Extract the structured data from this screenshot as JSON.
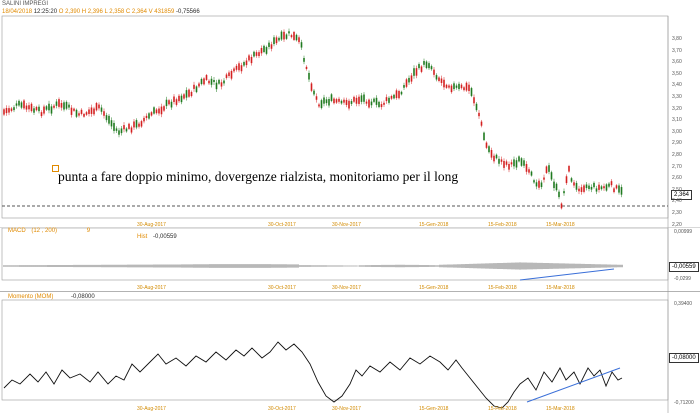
{
  "main_panel": {
    "title": "SALINI IMPREGI",
    "ohlc_line": {
      "date": "18/04/2018",
      "time": "12:25:20",
      "open": "O 2,390",
      "high": "H 2,396",
      "low": "L 2,358",
      "close": "C 2,364",
      "volume": "V 431859",
      "change": "-0,75566"
    },
    "annotation": "punta a fare doppio minimo, dovergenze rialzista, monitoriamo per il long",
    "current_price_label": "2,364",
    "price_axis_labels": [
      "3,80",
      "3,70",
      "3,60",
      "3,50",
      "3,40",
      "3,30",
      "3,20",
      "3,10",
      "3,00",
      "2,90",
      "2,80",
      "2,70",
      "2,60",
      "2,50",
      "2,40",
      "2,30",
      "2,20"
    ],
    "date_labels": [
      "30-Aug-2017",
      "30-Oct-2017",
      "30-Nov-2017",
      "15-Gen-2018",
      "15-Feb-2018",
      "15-Mar-2018"
    ],
    "colors": {
      "up": "#1f7a1f",
      "down": "#d42020",
      "support_line": "#555555"
    }
  },
  "macd_panel": {
    "title": "MACD",
    "params": "(12 , 200)",
    "period": "9",
    "sub_label": "Hist",
    "value": "-0,00559",
    "axis_top": "0,00999",
    "axis_bottom": "-0,0299",
    "current_value_label": "-0,00559",
    "date_labels": [
      "30-Aug-2017",
      "30-Oct-2017",
      "30-Nov-2017",
      "15-Gen-2018",
      "15-Feb-2018",
      "15-Mar-2018"
    ],
    "divergence_color": "#3a6fd8"
  },
  "momentum_panel": {
    "title": "Momento (MOM)",
    "value": "-0,08000",
    "axis_top": "0,39400",
    "axis_bottom": "-0,71200",
    "current_value_label": "-0,08000",
    "date_labels": [
      "30-Aug-2017",
      "30-Oct-2017",
      "30-Nov-2017",
      "15-Gen-2018",
      "15-Feb-2018",
      "15-Mar-2018"
    ],
    "divergence_color": "#3a6fd8"
  }
}
